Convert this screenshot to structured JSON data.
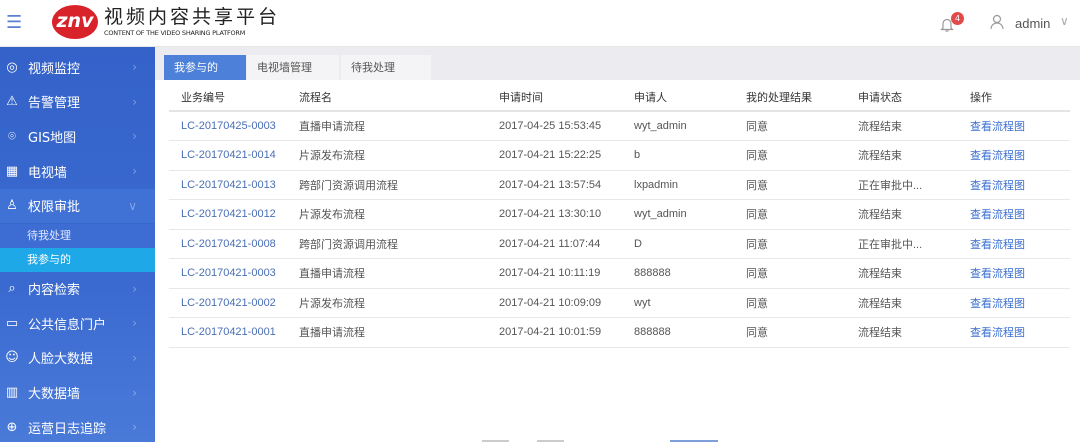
{
  "header": {
    "logo_text": "znv",
    "title": "视频内容共享平台",
    "subtitle": "CONTENT OF THE VIDEO SHARING PLATFORM",
    "notification_count": "4",
    "username": "admin"
  },
  "sidebar": {
    "items": [
      {
        "label": "视频监控",
        "icon": "camera-icon"
      },
      {
        "label": "告警管理",
        "icon": "warning-icon"
      },
      {
        "label": "GIS地图",
        "icon": "location-icon"
      },
      {
        "label": "电视墙",
        "icon": "tv-wall-icon"
      },
      {
        "label": "权限审批",
        "icon": "user-check-icon",
        "open": true,
        "children": [
          {
            "label": "待我处理"
          },
          {
            "label": "我参与的",
            "active": true
          }
        ]
      },
      {
        "label": "内容检索",
        "icon": "search-icon"
      },
      {
        "label": "公共信息门户",
        "icon": "monitor-icon"
      },
      {
        "label": "人脸大数据",
        "icon": "face-icon"
      },
      {
        "label": "大数据墙",
        "icon": "chart-icon"
      },
      {
        "label": "运营日志追踪",
        "icon": "target-icon"
      }
    ]
  },
  "tabs": [
    {
      "label": "我参与的",
      "active": true
    },
    {
      "label": "电视墙管理"
    },
    {
      "label": "待我处理"
    }
  ],
  "table": {
    "columns": [
      "业务编号",
      "流程名",
      "申请时间",
      "申请人",
      "我的处理结果",
      "申请状态",
      "操作"
    ],
    "rows": [
      [
        "LC-20170425-0003",
        "直播申请流程",
        "2017-04-25 15:53:45",
        "wyt_admin",
        "同意",
        "流程结束",
        "查看流程图"
      ],
      [
        "LC-20170421-0014",
        "片源发布流程",
        "2017-04-21 15:22:25",
        "b",
        "同意",
        "流程结束",
        "查看流程图"
      ],
      [
        "LC-20170421-0013",
        "跨部门资源调用流程",
        "2017-04-21 13:57:54",
        "lxpadmin",
        "同意",
        "正在审批中...",
        "查看流程图"
      ],
      [
        "LC-20170421-0012",
        "片源发布流程",
        "2017-04-21 13:30:10",
        "wyt_admin",
        "同意",
        "流程结束",
        "查看流程图"
      ],
      [
        "LC-20170421-0008",
        "跨部门资源调用流程",
        "2017-04-21 11:07:44",
        "D",
        "同意",
        "正在审批中...",
        "查看流程图"
      ],
      [
        "LC-20170421-0003",
        "直播申请流程",
        "2017-04-21 10:11:19",
        "888888",
        "同意",
        "流程结束",
        "查看流程图"
      ],
      [
        "LC-20170421-0002",
        "片源发布流程",
        "2017-04-21 10:09:09",
        "wyt",
        "同意",
        "流程结束",
        "查看流程图"
      ],
      [
        "LC-20170421-0001",
        "直播申请流程",
        "2017-04-21 10:01:59",
        "888888",
        "同意",
        "流程结束",
        "查看流程图"
      ]
    ]
  },
  "colors": {
    "sidebar": "#3462c9",
    "active_sub": "#1fa8e8",
    "active_tab": "#4d80d8",
    "link": "#3a6fd0",
    "logo": "#d9232a"
  }
}
